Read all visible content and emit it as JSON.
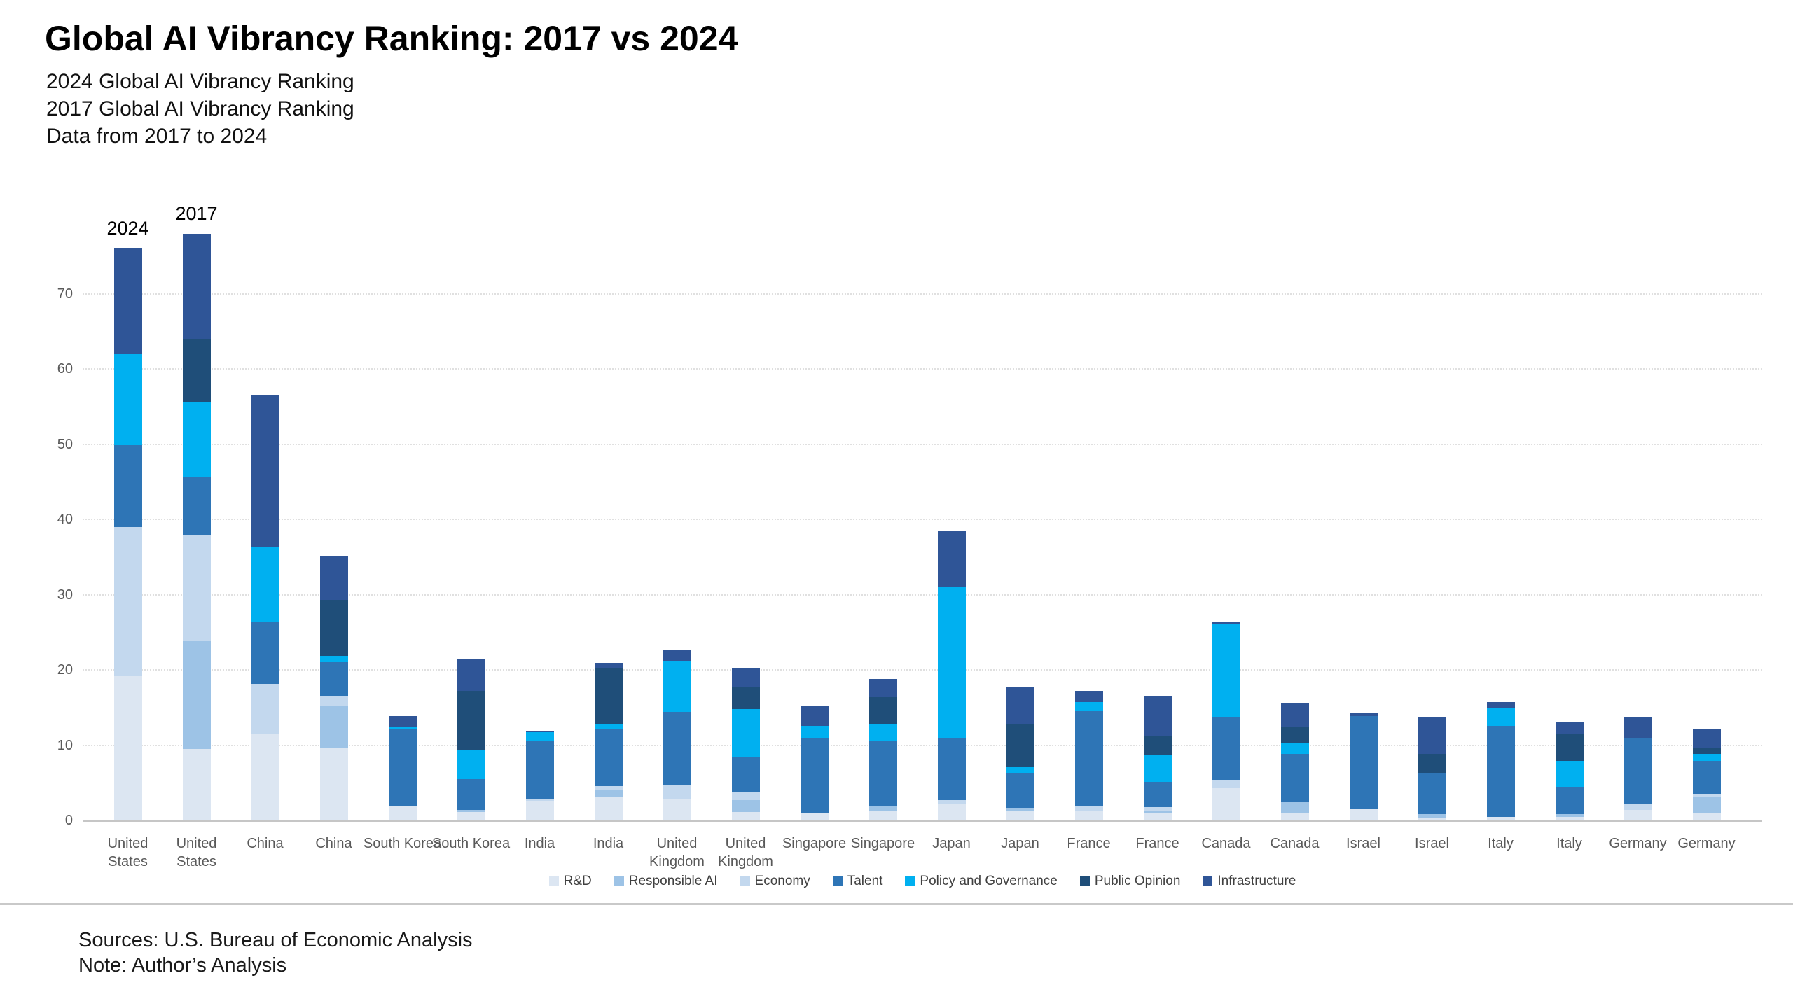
{
  "header": {
    "title": "Global AI Vibrancy Ranking: 2017 vs 2024",
    "subtitles": [
      "2024 Global AI Vibrancy Ranking",
      "2017 Global AI Vibrancy Ranking",
      "Data from 2017 to 2024"
    ]
  },
  "footer": {
    "sources": "Sources:  U.S. Bureau of Economic Analysis",
    "note": "Note: Author’s Analysis"
  },
  "chart_data": {
    "type": "bar",
    "stacked": true,
    "title": "Global AI Vibrancy Ranking: 2017 vs 2024",
    "xlabel": "",
    "ylabel": "",
    "ylim": [
      0,
      80
    ],
    "yticks": [
      0,
      10,
      20,
      30,
      40,
      50,
      60,
      70
    ],
    "grid": "horizontal-dotted",
    "legend_position": "bottom",
    "annotations": [
      {
        "text": "2024",
        "bar_index": 0
      },
      {
        "text": "2017",
        "bar_index": 1
      }
    ],
    "categories": [
      "United\nStates",
      "United\nStates",
      "China",
      "China",
      "South Korea",
      "South Korea",
      "India",
      "India",
      "United\nKingdom",
      "United\nKingdom",
      "Singapore",
      "Singapore",
      "Japan",
      "Japan",
      "France",
      "France",
      "Canada",
      "Canada",
      "Israel",
      "Israel",
      "Italy",
      "Italy",
      "Germany",
      "Germany"
    ],
    "series": [
      {
        "name": "R&D",
        "color": "#dce6f2",
        "values": [
          19.2,
          9.5,
          11.5,
          9.6,
          1.9,
          1.1,
          2.6,
          3.2,
          2.9,
          1.1,
          0.9,
          1.25,
          2.1,
          1.2,
          1.3,
          0.9,
          4.3,
          1.0,
          1.5,
          0.4,
          0.5,
          0.5,
          1.4,
          1.0
        ]
      },
      {
        "name": "Responsible AI",
        "color": "#9dc3e6",
        "values": [
          0,
          14.3,
          0,
          5.6,
          0,
          0.3,
          0,
          0.8,
          0,
          1.6,
          0,
          0.65,
          0,
          0.5,
          0,
          0.3,
          0,
          1.4,
          0,
          0.4,
          0,
          0.35,
          0,
          2.1
        ]
      },
      {
        "name": "Economy",
        "color": "#c3d8ee",
        "values": [
          19.8,
          14.2,
          6.6,
          1.3,
          0,
          0,
          0.3,
          0.6,
          1.8,
          1.0,
          0,
          0,
          0.6,
          0,
          0.6,
          0.6,
          1.1,
          0,
          0,
          0,
          0,
          0,
          0.7,
          0.3
        ]
      },
      {
        "name": "Talent",
        "color": "#2e75b6",
        "values": [
          10.9,
          7.7,
          8.2,
          4.5,
          10.2,
          4.1,
          7.7,
          7.6,
          9.7,
          4.7,
          10.1,
          8.7,
          8.3,
          4.6,
          12.6,
          3.3,
          8.3,
          6.4,
          12.4,
          5.4,
          12.1,
          3.55,
          8.8,
          4.5
        ]
      },
      {
        "name": "Policy and Governance",
        "color": "#00b0f0",
        "values": [
          12.1,
          9.8,
          10.1,
          0.9,
          0.3,
          3.9,
          1.1,
          0.5,
          6.8,
          6.4,
          1.6,
          2.1,
          20.1,
          0.8,
          1.2,
          3.6,
          12.4,
          1.4,
          0,
          0,
          2.3,
          3.5,
          0,
          0.9
        ]
      },
      {
        "name": "Public Opinion",
        "color": "#1f4e79",
        "values": [
          0,
          8.5,
          0,
          7.4,
          0,
          7.8,
          0,
          7.5,
          0,
          2.9,
          0,
          3.7,
          0,
          5.6,
          0,
          2.5,
          0,
          2.2,
          0,
          2.65,
          0,
          3.5,
          0,
          0.9
        ]
      },
      {
        "name": "Infrastructure",
        "color": "#2f5597",
        "values": [
          14.0,
          14.0,
          20.1,
          5.9,
          1.5,
          4.2,
          0.2,
          0.7,
          1.4,
          2.5,
          2.7,
          2.4,
          7.4,
          5.0,
          1.5,
          5.4,
          0.3,
          3.1,
          0.4,
          4.85,
          0.8,
          1.6,
          2.85,
          2.5
        ]
      }
    ]
  }
}
